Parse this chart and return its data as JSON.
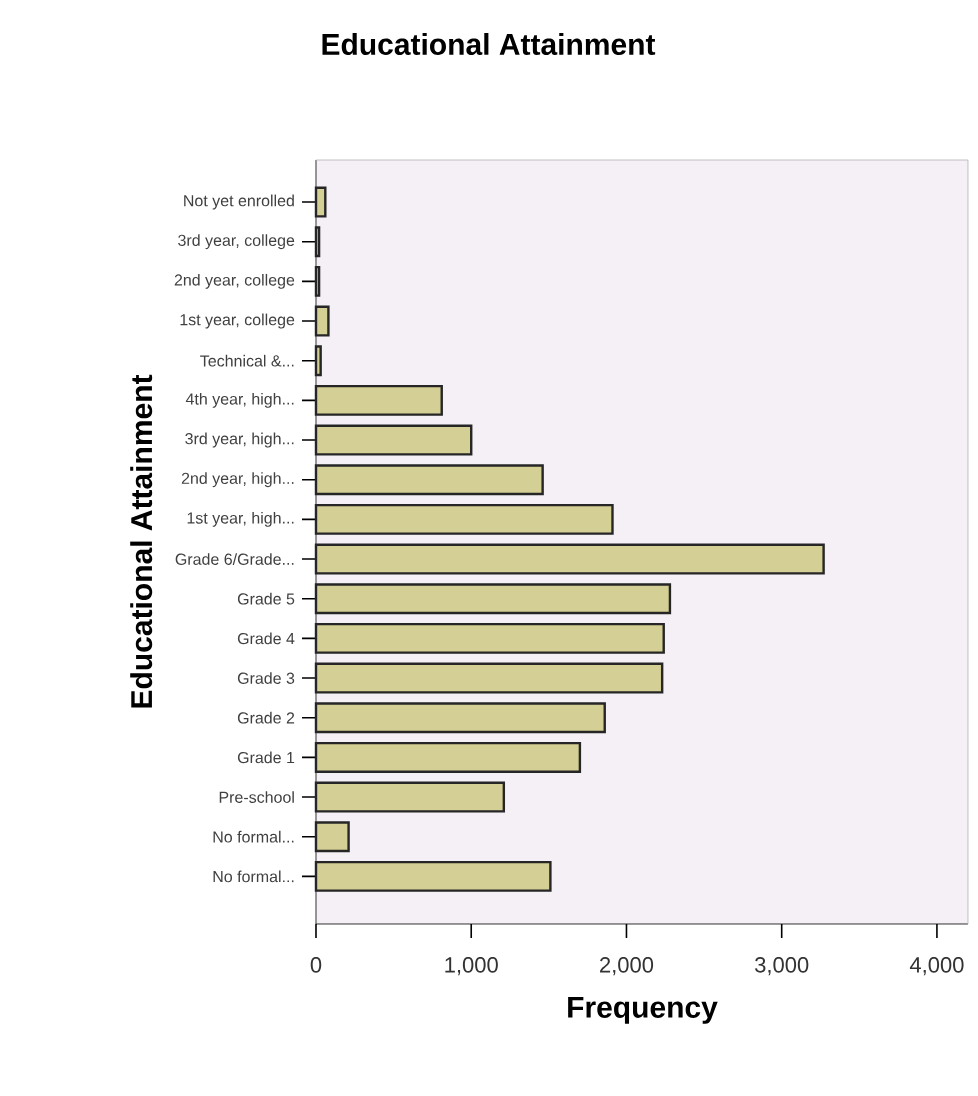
{
  "chart_data": {
    "type": "bar",
    "orientation": "horizontal",
    "title": "Educational Attainment",
    "xlabel": "Frequency",
    "ylabel": "Educational Attainment",
    "categories": [
      "Not yet enrolled",
      "3rd year, college",
      "2nd year, college",
      "1st year, college",
      "Technical &...",
      "4th year, high...",
      "3rd year, high...",
      "2nd year, high...",
      "1st year, high...",
      "Grade 6/Grade...",
      "Grade 5",
      "Grade 4",
      "Grade 3",
      "Grade 2",
      "Grade 1",
      "Pre-school",
      "No formal...",
      "No formal..."
    ],
    "values": [
      60,
      20,
      20,
      80,
      30,
      810,
      1000,
      1460,
      1910,
      3270,
      2280,
      2240,
      2230,
      1860,
      1700,
      1210,
      210,
      1510
    ],
    "color": "#d4cf94",
    "xlim": [
      0,
      4200
    ],
    "xticks": [
      {
        "value": 0,
        "label": "0"
      },
      {
        "value": 1000,
        "label": "1,000"
      },
      {
        "value": 2000,
        "label": "2,000"
      },
      {
        "value": 3000,
        "label": "3,000"
      },
      {
        "value": 4000,
        "label": "4,000"
      }
    ]
  }
}
